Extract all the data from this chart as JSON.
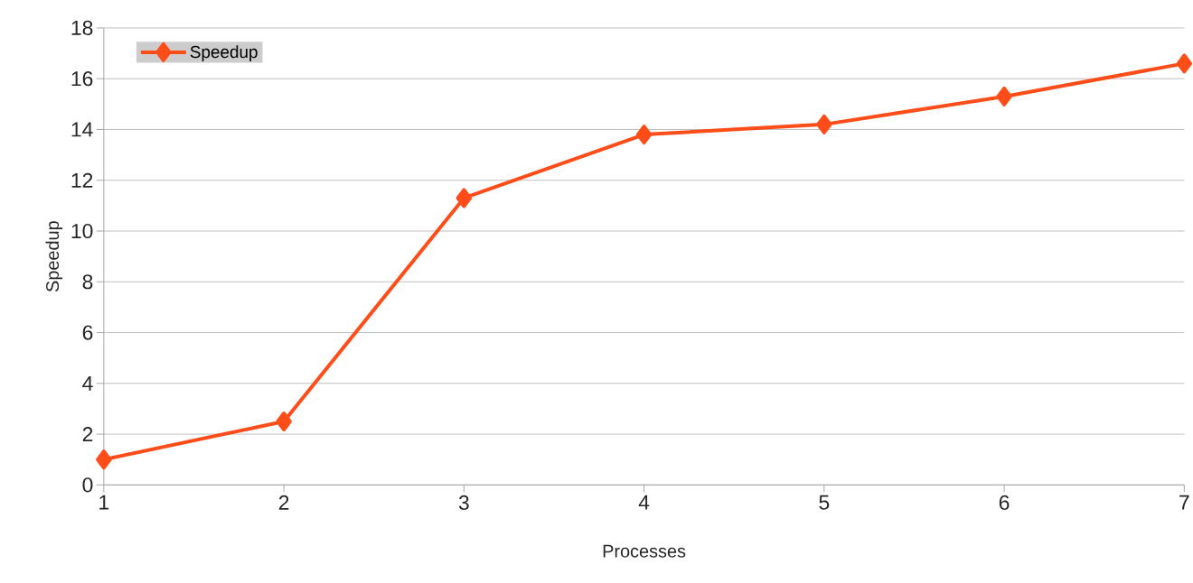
{
  "chart_data": {
    "type": "line",
    "xlabel": "Processes",
    "ylabel": "Speedup",
    "x": [
      1,
      2,
      3,
      4,
      5,
      6,
      7
    ],
    "series": [
      {
        "name": "Speedup",
        "color": "#ff4d1a",
        "values": [
          1.0,
          2.5,
          11.3,
          13.8,
          14.2,
          15.3,
          16.6
        ]
      }
    ],
    "xlim": [
      1,
      7
    ],
    "xticks": [
      1,
      2,
      3,
      4,
      5,
      6,
      7
    ],
    "ylim": [
      0,
      18
    ],
    "yticks": [
      0,
      2,
      4,
      6,
      8,
      10,
      12,
      14,
      16,
      18
    ],
    "grid": "y",
    "legend": "top left",
    "marker": "diamond",
    "line_style": "solid"
  }
}
